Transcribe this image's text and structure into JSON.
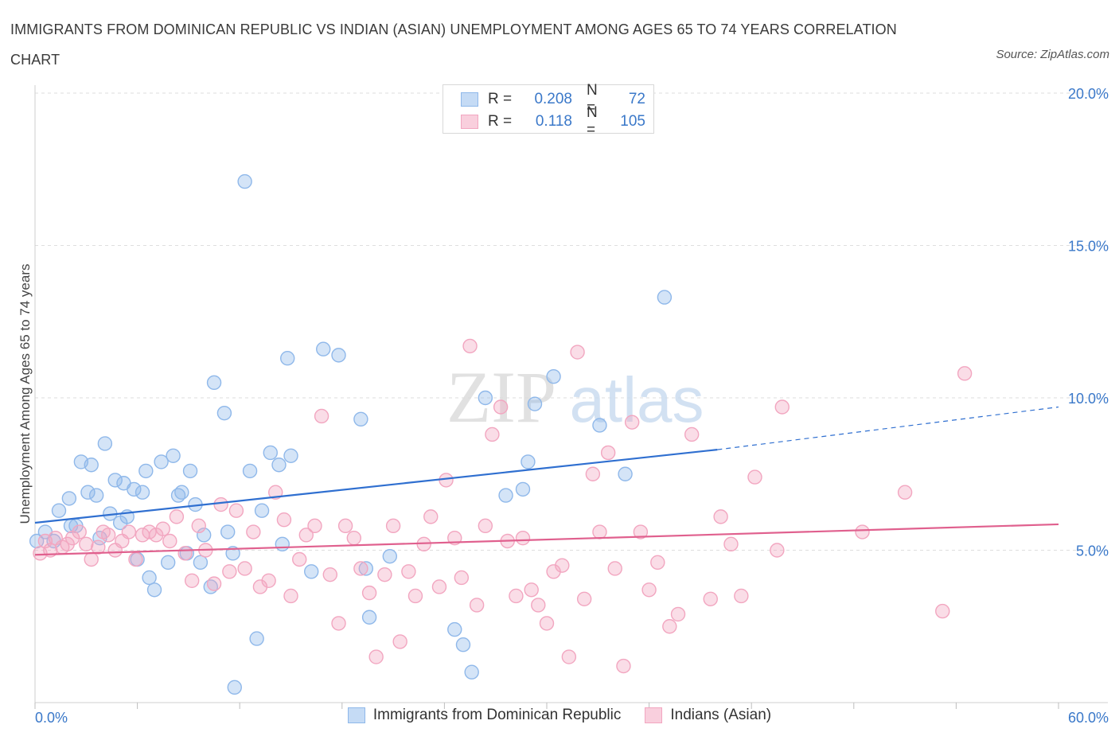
{
  "title": "IMMIGRANTS FROM DOMINICAN REPUBLIC VS INDIAN (ASIAN) UNEMPLOYMENT AMONG AGES 65 TO 74 YEARS CORRELATION CHART",
  "source": "Source: ZipAtlas.com",
  "watermark": {
    "zip": "ZIP",
    "atlas": "atlas"
  },
  "legend": {
    "rows": [
      {
        "r_label": "R =",
        "r_value": "0.208",
        "n_label": "N =",
        "n_value": "72"
      },
      {
        "r_label": "R =",
        "r_value": "0.118",
        "n_label": "N =",
        "n_value": "105"
      }
    ]
  },
  "chart_data": {
    "type": "scatter",
    "xlabel": "",
    "ylabel": "Unemployment Among Ages 65 to 74 years",
    "xlim": [
      0,
      60
    ],
    "ylim": [
      0,
      20
    ],
    "x_tick_labels": [
      "0.0%",
      "60.0%"
    ],
    "y_tick_labels": [
      "5.0%",
      "10.0%",
      "15.0%",
      "20.0%"
    ],
    "y_ticks": [
      5,
      10,
      15,
      20
    ],
    "grid": true,
    "legend_position": "bottom",
    "series": [
      {
        "name": "Immigrants from Dominican Republic",
        "color": "#8fb8ea",
        "line_color": "#2f6fd0",
        "trend": {
          "x0": 0,
          "y0": 5.9,
          "x1": 40,
          "y1": 8.3,
          "dash_to_x": 60,
          "dash_to_y": 9.7
        },
        "points": [
          [
            0.1,
            5.3
          ],
          [
            0.6,
            5.6
          ],
          [
            1.1,
            5.3
          ],
          [
            1.4,
            6.3
          ],
          [
            2.0,
            6.7
          ],
          [
            2.1,
            5.8
          ],
          [
            2.4,
            5.8
          ],
          [
            2.7,
            7.9
          ],
          [
            3.1,
            6.9
          ],
          [
            3.3,
            7.8
          ],
          [
            3.6,
            6.8
          ],
          [
            3.8,
            5.4
          ],
          [
            4.1,
            8.5
          ],
          [
            4.4,
            6.2
          ],
          [
            4.7,
            7.3
          ],
          [
            5.0,
            5.9
          ],
          [
            5.2,
            7.2
          ],
          [
            5.4,
            6.1
          ],
          [
            5.8,
            7.0
          ],
          [
            6.0,
            4.7
          ],
          [
            6.3,
            6.9
          ],
          [
            6.5,
            7.6
          ],
          [
            6.7,
            4.1
          ],
          [
            7.0,
            3.7
          ],
          [
            7.4,
            7.9
          ],
          [
            7.8,
            4.6
          ],
          [
            8.1,
            8.1
          ],
          [
            8.4,
            6.8
          ],
          [
            8.6,
            6.9
          ],
          [
            8.9,
            4.9
          ],
          [
            9.1,
            7.6
          ],
          [
            9.4,
            6.5
          ],
          [
            9.7,
            4.6
          ],
          [
            9.9,
            5.5
          ],
          [
            10.3,
            3.8
          ],
          [
            10.5,
            10.5
          ],
          [
            11.1,
            9.5
          ],
          [
            11.3,
            5.6
          ],
          [
            11.6,
            4.9
          ],
          [
            11.7,
            0.5
          ],
          [
            12.3,
            17.1
          ],
          [
            12.6,
            7.6
          ],
          [
            13.0,
            2.1
          ],
          [
            13.3,
            6.3
          ],
          [
            13.8,
            8.2
          ],
          [
            14.3,
            7.8
          ],
          [
            14.5,
            5.2
          ],
          [
            14.8,
            11.3
          ],
          [
            15.0,
            8.1
          ],
          [
            16.2,
            4.3
          ],
          [
            16.9,
            11.6
          ],
          [
            17.8,
            11.4
          ],
          [
            19.1,
            9.3
          ],
          [
            19.4,
            4.4
          ],
          [
            19.6,
            2.8
          ],
          [
            20.8,
            4.8
          ],
          [
            24.6,
            2.4
          ],
          [
            25.1,
            1.9
          ],
          [
            25.6,
            1.0
          ],
          [
            26.4,
            10.0
          ],
          [
            27.6,
            6.8
          ],
          [
            28.6,
            7.0
          ],
          [
            28.9,
            7.9
          ],
          [
            29.3,
            9.8
          ],
          [
            30.4,
            10.7
          ],
          [
            33.1,
            9.1
          ],
          [
            34.6,
            7.5
          ],
          [
            36.9,
            13.3
          ]
        ]
      },
      {
        "name": "Indians (Asian)",
        "color": "#f2a6c0",
        "line_color": "#e0608e",
        "trend": {
          "x0": 0,
          "y0": 4.85,
          "x1": 60,
          "y1": 5.85
        },
        "points": [
          [
            0.3,
            4.9
          ],
          [
            0.6,
            5.3
          ],
          [
            0.9,
            5.0
          ],
          [
            1.2,
            5.4
          ],
          [
            1.6,
            5.1
          ],
          [
            1.9,
            5.2
          ],
          [
            2.2,
            5.4
          ],
          [
            2.6,
            5.6
          ],
          [
            3.0,
            5.2
          ],
          [
            3.3,
            4.7
          ],
          [
            3.7,
            5.1
          ],
          [
            4.0,
            5.6
          ],
          [
            4.3,
            5.5
          ],
          [
            4.7,
            5.0
          ],
          [
            5.1,
            5.3
          ],
          [
            5.5,
            5.6
          ],
          [
            5.9,
            4.7
          ],
          [
            6.3,
            5.5
          ],
          [
            6.7,
            5.6
          ],
          [
            7.1,
            5.5
          ],
          [
            7.5,
            5.7
          ],
          [
            7.9,
            5.3
          ],
          [
            8.3,
            6.1
          ],
          [
            8.8,
            4.9
          ],
          [
            9.2,
            4.0
          ],
          [
            9.6,
            5.8
          ],
          [
            10.0,
            5.0
          ],
          [
            10.5,
            3.9
          ],
          [
            10.9,
            6.5
          ],
          [
            11.4,
            4.3
          ],
          [
            11.8,
            6.3
          ],
          [
            12.3,
            4.4
          ],
          [
            12.8,
            5.6
          ],
          [
            13.2,
            3.8
          ],
          [
            13.7,
            4.0
          ],
          [
            14.1,
            6.9
          ],
          [
            14.6,
            6.0
          ],
          [
            15.0,
            3.5
          ],
          [
            15.5,
            4.7
          ],
          [
            15.9,
            5.5
          ],
          [
            16.4,
            5.8
          ],
          [
            16.8,
            9.4
          ],
          [
            17.3,
            4.2
          ],
          [
            17.8,
            2.6
          ],
          [
            18.2,
            5.8
          ],
          [
            18.7,
            5.4
          ],
          [
            19.1,
            4.4
          ],
          [
            19.6,
            3.6
          ],
          [
            20.0,
            1.5
          ],
          [
            20.5,
            4.2
          ],
          [
            21.0,
            5.8
          ],
          [
            21.4,
            2.0
          ],
          [
            21.9,
            4.3
          ],
          [
            22.3,
            3.5
          ],
          [
            22.8,
            5.2
          ],
          [
            23.2,
            6.1
          ],
          [
            23.7,
            3.8
          ],
          [
            24.1,
            7.3
          ],
          [
            24.6,
            5.4
          ],
          [
            25.0,
            4.1
          ],
          [
            25.5,
            11.7
          ],
          [
            25.9,
            3.2
          ],
          [
            26.4,
            5.8
          ],
          [
            26.8,
            8.8
          ],
          [
            27.3,
            9.7
          ],
          [
            27.7,
            5.3
          ],
          [
            28.2,
            3.5
          ],
          [
            28.6,
            5.4
          ],
          [
            29.1,
            3.7
          ],
          [
            29.5,
            3.2
          ],
          [
            30.0,
            2.6
          ],
          [
            30.4,
            4.3
          ],
          [
            30.9,
            4.5
          ],
          [
            31.3,
            1.5
          ],
          [
            31.8,
            11.5
          ],
          [
            32.2,
            3.4
          ],
          [
            32.7,
            7.5
          ],
          [
            33.1,
            5.6
          ],
          [
            33.6,
            8.2
          ],
          [
            34.0,
            4.4
          ],
          [
            34.5,
            1.2
          ],
          [
            35.0,
            9.2
          ],
          [
            35.5,
            5.6
          ],
          [
            36.0,
            3.7
          ],
          [
            36.5,
            4.6
          ],
          [
            37.2,
            2.5
          ],
          [
            37.7,
            2.9
          ],
          [
            38.5,
            8.8
          ],
          [
            39.6,
            3.4
          ],
          [
            40.2,
            6.1
          ],
          [
            40.8,
            5.2
          ],
          [
            41.4,
            3.5
          ],
          [
            42.2,
            7.4
          ],
          [
            43.5,
            5.0
          ],
          [
            43.8,
            9.7
          ],
          [
            48.5,
            5.6
          ],
          [
            51.0,
            6.9
          ],
          [
            53.2,
            3.0
          ],
          [
            54.5,
            10.8
          ]
        ]
      }
    ]
  }
}
